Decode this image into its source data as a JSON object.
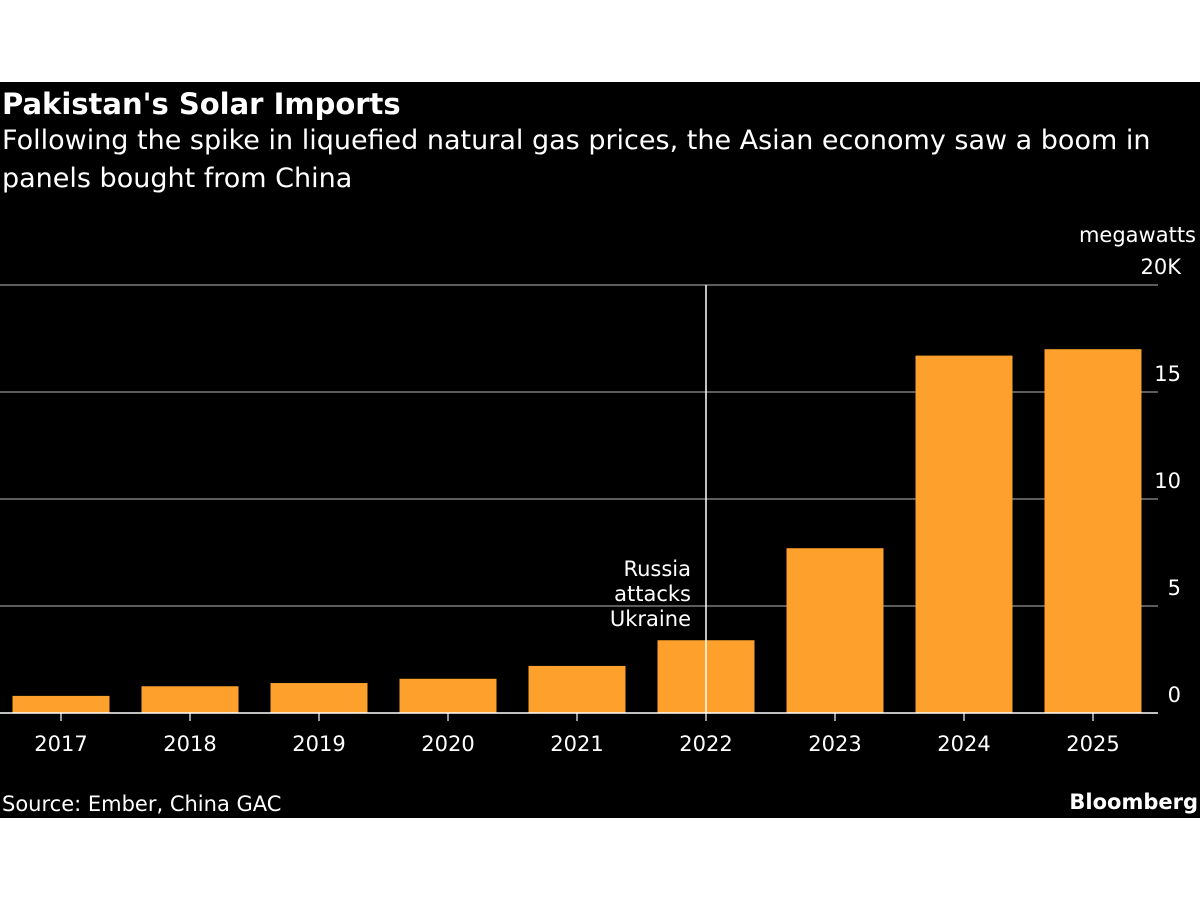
{
  "colors": {
    "background": "#000000",
    "bar": "#fda02c",
    "text": "#ffffff",
    "grid": "#7a7a7a"
  },
  "chart_data": {
    "type": "bar",
    "title": "Pakistan's Solar Imports",
    "subtitle": "Following the spike in liquefied natural gas prices, the Asian economy saw a boom in panels bought from China",
    "unit_label": "megawatts",
    "categories": [
      "2017",
      "2018",
      "2019",
      "2020",
      "2021",
      "2022",
      "2023",
      "2024",
      "2025"
    ],
    "values": [
      0.8,
      1.25,
      1.4,
      1.6,
      2.2,
      3.4,
      7.7,
      16.7,
      17.0
    ],
    "ylim": [
      0,
      20
    ],
    "yticks": [
      0,
      5,
      10,
      15,
      20
    ],
    "ytick_labels": [
      "0",
      "5",
      "10",
      "15",
      "20K"
    ],
    "grid": true,
    "axis_side": "right",
    "annotation": {
      "x": "2022",
      "lines": [
        "Russia",
        "attacks",
        "Ukraine"
      ]
    },
    "source": "Source: Ember, China GAC",
    "brand": "Bloomberg"
  }
}
